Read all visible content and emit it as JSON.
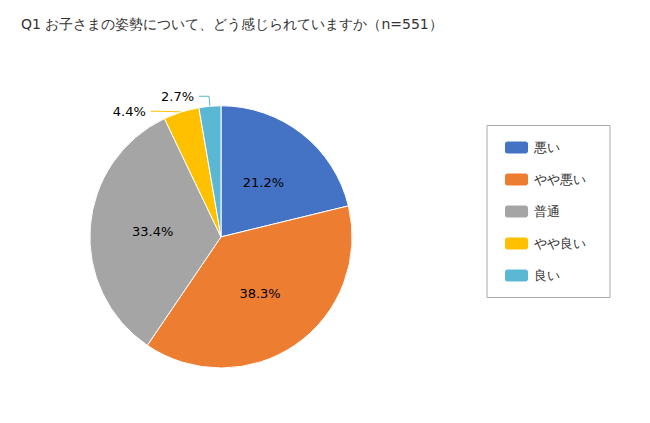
{
  "chart_data": {
    "type": "pie",
    "title": "Q1 お子さまの姿勢について、どう感じられていますか（n=551）",
    "categories": [
      "悪い",
      "やや悪い",
      "普通",
      "やや良い",
      "良い"
    ],
    "values": [
      21.2,
      38.3,
      33.4,
      4.4,
      2.7
    ],
    "value_labels": [
      "21.2%",
      "38.3%",
      "33.4%",
      "4.4%",
      "2.7%"
    ],
    "colors": [
      "#4472C4",
      "#ED7D31",
      "#A5A5A5",
      "#FFC000",
      "#5BB8D4"
    ],
    "data_labels": true,
    "legend": "right"
  }
}
